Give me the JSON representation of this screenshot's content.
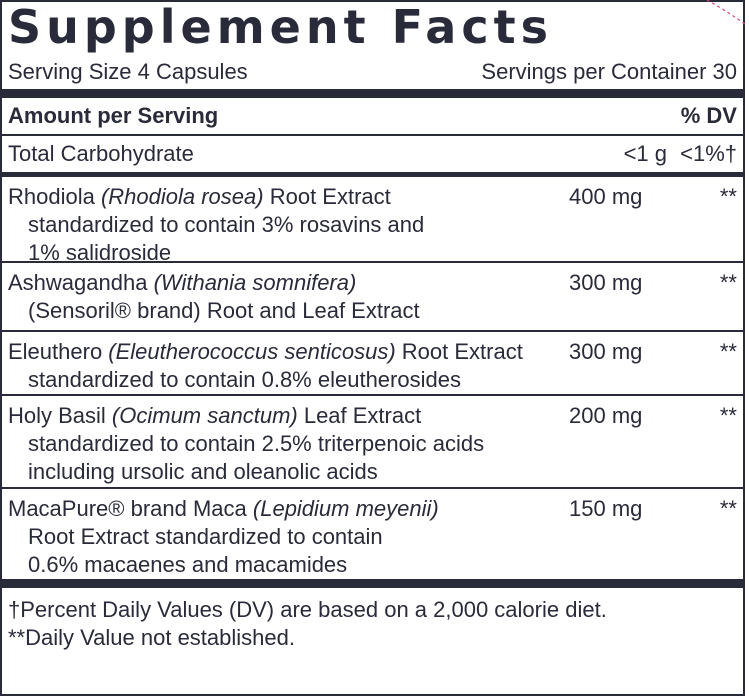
{
  "panel": {
    "title": "Supplement Facts",
    "serving_size": "Serving Size 4 Capsules",
    "servings_per_container": "Servings per Container 30",
    "amount_header": "Amount per Serving",
    "dv_header": "% DV"
  },
  "carbohydrate": {
    "name": "Total Carbohydrate",
    "amount": "<1 g",
    "dv": "<1%†"
  },
  "ingredients": [
    {
      "pre": "Rhodiola ",
      "latin": "(Rhodiola rosea)",
      "post": " Root Extract",
      "lines": [
        "standardized to contain 3% rosavins and",
        "1% salidroside"
      ],
      "amount": "400 mg",
      "dv": "**"
    },
    {
      "pre": "Ashwagandha ",
      "latin": "(Withania somnifera)",
      "post": "",
      "lines": [
        "(Sensoril® brand) Root and Leaf Extract"
      ],
      "amount": "300 mg",
      "dv": "**"
    },
    {
      "pre": "Eleuthero ",
      "latin": "(Eleutherococcus senticosus)",
      "post": " Root Extract",
      "lines": [
        "standardized to contain 0.8% eleutherosides"
      ],
      "amount": "300 mg",
      "dv": "**"
    },
    {
      "pre": "Holy Basil ",
      "latin": "(Ocimum sanctum)",
      "post": " Leaf Extract",
      "lines": [
        "standardized to contain 2.5% triterpenoic acids",
        "including ursolic and oleanolic acids"
      ],
      "amount": "200 mg",
      "dv": "**"
    },
    {
      "pre": "MacaPure® brand Maca ",
      "latin": "(Lepidium meyenii)",
      "post": "",
      "lines": [
        "Root Extract standardized to contain",
        "0.6% macaenes and macamides"
      ],
      "amount": "150 mg",
      "dv": "**"
    }
  ],
  "footnotes": [
    "†Percent Daily Values (DV) are based on a 2,000 calorie diet.",
    "**Daily Value not established."
  ],
  "colors": {
    "ink": "#2a2b3a",
    "accent": "#e0457b"
  }
}
